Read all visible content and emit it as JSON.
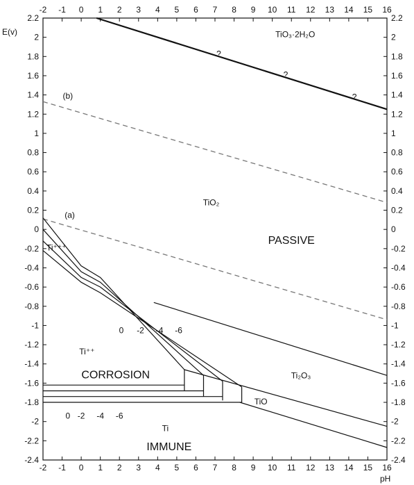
{
  "chart_data": {
    "type": "line",
    "title": "",
    "xlabel": "pH",
    "ylabel": "E(v)",
    "xlim": [
      -2,
      16
    ],
    "ylim": [
      -2.4,
      2.2
    ],
    "x_ticks": [
      "-2",
      "-1",
      "0",
      "1",
      "2",
      "3",
      "4",
      "5",
      "6",
      "7",
      "8",
      "9",
      "10",
      "11",
      "12",
      "13",
      "14",
      "15",
      "16"
    ],
    "y_ticks": [
      "2.2",
      "2",
      "1.8",
      "1.6",
      "1.4",
      "1.2",
      "1",
      "0.8",
      "0.6",
      "0.4",
      "0.2",
      "0",
      "-0.2",
      "-0.4",
      "-0.6",
      "-0.8",
      "-1",
      "-1.2",
      "-1.4",
      "-1.6",
      "-1.8",
      "-2",
      "-2.2",
      "-2.4"
    ],
    "grid": false,
    "series": [
      {
        "name": "",
        "style": "solid-thick",
        "x": [
          0.8,
          16
        ],
        "y": [
          2.2,
          1.25
        ]
      },
      {
        "name": "",
        "style": "dashed",
        "x": [
          -2,
          16
        ],
        "y": [
          1.33,
          0.28
        ]
      },
      {
        "name": "",
        "style": "dashed",
        "x": [
          -2,
          16
        ],
        "y": [
          0.11,
          -0.94
        ]
      },
      {
        "name": "",
        "style": "solid",
        "x": [
          3.8,
          16
        ],
        "y": [
          -0.76,
          -1.52
        ]
      },
      {
        "name": "",
        "style": "solid",
        "x": [
          5.4,
          16
        ],
        "y": [
          -1.46,
          -2.05
        ]
      },
      {
        "name": "",
        "style": "solid",
        "x": [
          8.3,
          16
        ],
        "y": [
          -1.8,
          -2.27
        ]
      },
      {
        "name": "",
        "style": "solid",
        "x": [
          -2,
          0,
          1,
          5.4
        ],
        "y": [
          0.12,
          -0.38,
          -0.5,
          -1.46
        ]
      },
      {
        "name": "",
        "style": "solid",
        "x": [
          -2,
          0,
          1,
          6.4
        ],
        "y": [
          0.0,
          -0.44,
          -0.55,
          -1.52
        ]
      },
      {
        "name": "",
        "style": "solid",
        "x": [
          -2,
          0,
          1,
          7.4
        ],
        "y": [
          -0.12,
          -0.5,
          -0.6,
          -1.58
        ]
      },
      {
        "name": "",
        "style": "solid",
        "x": [
          -2,
          0,
          1,
          8.4
        ],
        "y": [
          -0.22,
          -0.55,
          -0.66,
          -1.64
        ]
      },
      {
        "name": "",
        "style": "solid",
        "x": [
          5.4,
          5.4
        ],
        "y": [
          -1.46,
          -1.68
        ]
      },
      {
        "name": "",
        "style": "solid",
        "x": [
          6.4,
          6.4
        ],
        "y": [
          -1.52,
          -1.74
        ]
      },
      {
        "name": "",
        "style": "solid",
        "x": [
          7.4,
          7.4
        ],
        "y": [
          -1.58,
          -1.78
        ]
      },
      {
        "name": "",
        "style": "solid",
        "x": [
          8.4,
          8.4
        ],
        "y": [
          -1.64,
          -1.8
        ]
      },
      {
        "name": "",
        "style": "solid",
        "x": [
          -2,
          5.4
        ],
        "y": [
          -1.62,
          -1.62
        ]
      },
      {
        "name": "",
        "style": "solid",
        "x": [
          -2,
          6.4
        ],
        "y": [
          -1.68,
          -1.68
        ]
      },
      {
        "name": "",
        "style": "solid",
        "x": [
          -2,
          7.4
        ],
        "y": [
          -1.74,
          -1.74
        ]
      },
      {
        "name": "",
        "style": "solid",
        "x": [
          -2,
          8.4
        ],
        "y": [
          -1.8,
          -1.8
        ]
      }
    ],
    "annotations": [
      {
        "text": "TiO₃·2H₂O",
        "x": 11.2,
        "y": 2.0,
        "size": "normal"
      },
      {
        "text": "?",
        "x": 7.2,
        "y": 1.8,
        "size": "normal"
      },
      {
        "text": "?",
        "x": 10.7,
        "y": 1.58,
        "size": "normal"
      },
      {
        "text": "?",
        "x": 14.3,
        "y": 1.35,
        "size": "normal"
      },
      {
        "text": "(b)",
        "x": -0.7,
        "y": 1.36,
        "size": "normal"
      },
      {
        "text": "TiO₂",
        "x": 6.8,
        "y": 0.25,
        "size": "normal"
      },
      {
        "text": "(a)",
        "x": -0.6,
        "y": 0.12,
        "size": "normal"
      },
      {
        "text": "PASSIVE",
        "x": 11.0,
        "y": -0.15,
        "size": "large"
      },
      {
        "text": "Ti⁺⁺⁺",
        "x": -1.3,
        "y": -0.22,
        "size": "normal"
      },
      {
        "text": "0",
        "x": 2.1,
        "y": -1.08,
        "size": "normal"
      },
      {
        "text": "-2",
        "x": 3.1,
        "y": -1.08,
        "size": "normal"
      },
      {
        "text": "-4",
        "x": 4.1,
        "y": -1.08,
        "size": "normal"
      },
      {
        "text": "-6",
        "x": 5.1,
        "y": -1.08,
        "size": "normal"
      },
      {
        "text": "Ti⁺⁺",
        "x": 0.3,
        "y": -1.3,
        "size": "normal"
      },
      {
        "text": "CORROSION",
        "x": 1.8,
        "y": -1.55,
        "size": "large"
      },
      {
        "text": "Ti₂O₃",
        "x": 11.5,
        "y": -1.55,
        "size": "normal"
      },
      {
        "text": "TiO",
        "x": 9.4,
        "y": -1.82,
        "size": "normal"
      },
      {
        "text": "0",
        "x": -0.7,
        "y": -1.97,
        "size": "normal"
      },
      {
        "text": "-2",
        "x": 0.0,
        "y": -1.97,
        "size": "normal"
      },
      {
        "text": "-4",
        "x": 1.0,
        "y": -1.97,
        "size": "normal"
      },
      {
        "text": "-6",
        "x": 2.0,
        "y": -1.97,
        "size": "normal"
      },
      {
        "text": "Ti",
        "x": 4.4,
        "y": -2.1,
        "size": "normal"
      },
      {
        "text": "IMMUNE",
        "x": 4.6,
        "y": -2.3,
        "size": "large"
      }
    ]
  }
}
